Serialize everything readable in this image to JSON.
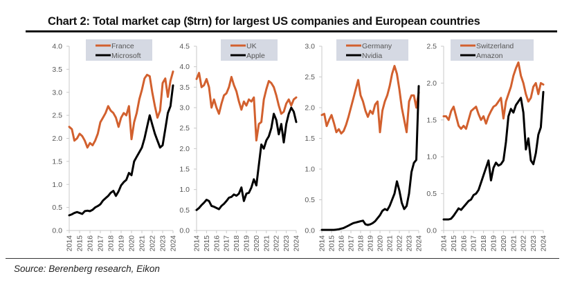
{
  "title": "Chart 2: Total market cap ($trn) for largest US companies and European countries",
  "source": "Source: Berenberg research, Eikon",
  "colors": {
    "country": "#d2602e",
    "company": "#000000",
    "legend_bg": "#d5d9e3",
    "axis": "#c8c8c8",
    "tick_text": "#555555"
  },
  "chart_data": [
    {
      "type": "line",
      "title": "",
      "xlabel": "",
      "ylabel": "$trn",
      "legend_position": "top-center",
      "grid": false,
      "x_ticks": [
        "2014",
        "2015",
        "2016",
        "2017",
        "2018",
        "2019",
        "2020",
        "2021",
        "2022",
        "2023",
        "2024"
      ],
      "xlim": [
        2014,
        2024
      ],
      "ylim": [
        0,
        4.0
      ],
      "y_ticks": [
        "0.0",
        "0.5",
        "1.0",
        "1.5",
        "2.0",
        "2.5",
        "3.0",
        "3.5",
        "4.0"
      ],
      "x": [
        2014.0,
        2014.25,
        2014.5,
        2014.75,
        2015.0,
        2015.25,
        2015.5,
        2015.75,
        2016.0,
        2016.25,
        2016.5,
        2016.75,
        2017.0,
        2017.25,
        2017.5,
        2017.75,
        2018.0,
        2018.25,
        2018.5,
        2018.75,
        2019.0,
        2019.25,
        2019.5,
        2019.75,
        2020.0,
        2020.25,
        2020.5,
        2020.75,
        2021.0,
        2021.25,
        2021.5,
        2021.75,
        2022.0,
        2022.25,
        2022.5,
        2022.75,
        2023.0,
        2023.25,
        2023.5,
        2023.75,
        2024.0
      ],
      "series": [
        {
          "name": "France",
          "role": "country",
          "values": [
            2.25,
            2.2,
            1.95,
            2.0,
            2.1,
            2.05,
            1.95,
            1.8,
            1.9,
            1.85,
            1.95,
            2.1,
            2.35,
            2.45,
            2.55,
            2.7,
            2.6,
            2.55,
            2.45,
            2.25,
            2.45,
            2.55,
            2.5,
            2.7,
            1.98,
            2.35,
            2.55,
            2.85,
            3.05,
            3.3,
            3.38,
            3.35,
            3.0,
            2.7,
            2.45,
            2.6,
            3.2,
            3.3,
            2.9,
            3.25,
            3.45
          ]
        },
        {
          "name": "Microsoft",
          "role": "company",
          "values": [
            0.33,
            0.35,
            0.38,
            0.4,
            0.38,
            0.36,
            0.42,
            0.43,
            0.42,
            0.45,
            0.5,
            0.53,
            0.57,
            0.65,
            0.7,
            0.75,
            0.82,
            0.86,
            0.75,
            0.85,
            0.98,
            1.05,
            1.1,
            1.25,
            1.2,
            1.5,
            1.6,
            1.7,
            1.8,
            2.0,
            2.25,
            2.5,
            2.3,
            2.1,
            1.95,
            1.8,
            1.85,
            2.2,
            2.55,
            2.7,
            3.15
          ]
        }
      ]
    },
    {
      "type": "line",
      "title": "",
      "xlabel": "",
      "ylabel": "$trn",
      "legend_position": "top-center",
      "grid": false,
      "x_ticks": [
        "2014",
        "2015",
        "2016",
        "2017",
        "2018",
        "2019",
        "2020",
        "2021",
        "2022",
        "2023",
        "2024"
      ],
      "xlim": [
        2014,
        2024
      ],
      "ylim": [
        0,
        4.5
      ],
      "y_ticks": [
        "0.0",
        "0.5",
        "1.0",
        "1.5",
        "2.0",
        "2.5",
        "3.0",
        "3.5",
        "4.0",
        "4.5"
      ],
      "x": [
        2014.0,
        2014.25,
        2014.5,
        2014.75,
        2015.0,
        2015.25,
        2015.5,
        2015.75,
        2016.0,
        2016.25,
        2016.5,
        2016.75,
        2017.0,
        2017.25,
        2017.5,
        2017.75,
        2018.0,
        2018.25,
        2018.5,
        2018.75,
        2019.0,
        2019.25,
        2019.5,
        2019.75,
        2020.0,
        2020.25,
        2020.5,
        2020.75,
        2021.0,
        2021.25,
        2021.5,
        2021.75,
        2022.0,
        2022.25,
        2022.5,
        2022.75,
        2023.0,
        2023.25,
        2023.5,
        2023.75,
        2024.0
      ],
      "series": [
        {
          "name": "UK",
          "role": "country",
          "values": [
            3.7,
            3.85,
            3.5,
            3.55,
            3.7,
            3.5,
            3.0,
            3.2,
            3.0,
            2.85,
            3.1,
            3.3,
            3.35,
            3.5,
            3.75,
            3.55,
            3.4,
            3.15,
            2.95,
            3.15,
            3.05,
            3.2,
            3.15,
            3.25,
            2.2,
            2.6,
            2.65,
            3.2,
            3.45,
            3.65,
            3.6,
            3.5,
            3.3,
            3.05,
            2.85,
            2.9,
            3.1,
            3.2,
            3.05,
            3.2,
            3.25
          ]
        },
        {
          "name": "Apple",
          "role": "company",
          "values": [
            0.5,
            0.55,
            0.62,
            0.68,
            0.75,
            0.72,
            0.6,
            0.58,
            0.55,
            0.52,
            0.6,
            0.65,
            0.72,
            0.8,
            0.82,
            0.88,
            0.85,
            0.9,
            1.05,
            0.72,
            0.9,
            0.92,
            1.05,
            1.25,
            1.1,
            1.6,
            2.1,
            2.0,
            2.2,
            2.3,
            2.5,
            2.85,
            2.7,
            2.35,
            2.6,
            2.15,
            2.6,
            2.85,
            3.0,
            2.9,
            2.65
          ]
        }
      ]
    },
    {
      "type": "line",
      "title": "",
      "xlabel": "",
      "ylabel": "$trn",
      "legend_position": "top-center",
      "grid": false,
      "x_ticks": [
        "2014",
        "2015",
        "2016",
        "2017",
        "2018",
        "2019",
        "2020",
        "2021",
        "2022",
        "2023",
        "2024"
      ],
      "xlim": [
        2014,
        2024
      ],
      "ylim": [
        0,
        3.0
      ],
      "y_ticks": [
        "0.0",
        "0.5",
        "1.0",
        "1.5",
        "2.0",
        "2.5",
        "3.0"
      ],
      "x": [
        2014.0,
        2014.25,
        2014.5,
        2014.75,
        2015.0,
        2015.25,
        2015.5,
        2015.75,
        2016.0,
        2016.25,
        2016.5,
        2016.75,
        2017.0,
        2017.25,
        2017.5,
        2017.75,
        2018.0,
        2018.25,
        2018.5,
        2018.75,
        2019.0,
        2019.25,
        2019.5,
        2019.75,
        2020.0,
        2020.25,
        2020.5,
        2020.75,
        2021.0,
        2021.25,
        2021.5,
        2021.75,
        2022.0,
        2022.25,
        2022.5,
        2022.75,
        2023.0,
        2023.25,
        2023.5,
        2023.75,
        2024.0
      ],
      "series": [
        {
          "name": "Germany",
          "role": "country",
          "values": [
            1.88,
            1.9,
            1.7,
            1.8,
            1.88,
            1.75,
            1.6,
            1.65,
            1.58,
            1.62,
            1.72,
            1.85,
            2.0,
            2.15,
            2.3,
            2.45,
            2.2,
            2.1,
            1.95,
            1.85,
            1.95,
            1.9,
            2.05,
            2.1,
            1.6,
            1.95,
            2.1,
            2.2,
            2.35,
            2.55,
            2.68,
            2.55,
            2.3,
            2.0,
            1.8,
            1.6,
            2.1,
            2.2,
            2.2,
            2.0,
            2.25
          ]
        },
        {
          "name": "Nvidia",
          "role": "company",
          "values": [
            0.01,
            0.01,
            0.01,
            0.01,
            0.01,
            0.01,
            0.015,
            0.02,
            0.03,
            0.04,
            0.06,
            0.08,
            0.1,
            0.12,
            0.13,
            0.14,
            0.15,
            0.16,
            0.1,
            0.09,
            0.1,
            0.12,
            0.15,
            0.2,
            0.25,
            0.32,
            0.35,
            0.33,
            0.4,
            0.5,
            0.6,
            0.8,
            0.65,
            0.45,
            0.35,
            0.4,
            0.6,
            0.95,
            1.1,
            1.15,
            2.35
          ]
        }
      ]
    },
    {
      "type": "line",
      "title": "",
      "xlabel": "",
      "ylabel": "$trn",
      "legend_position": "top-center",
      "grid": false,
      "x_ticks": [
        "2014",
        "2015",
        "2016",
        "2017",
        "2018",
        "2019",
        "2020",
        "2021",
        "2022",
        "2023",
        "2024"
      ],
      "xlim": [
        2014,
        2024
      ],
      "ylim": [
        0,
        2.5
      ],
      "y_ticks": [
        "0.0",
        "0.5",
        "1.0",
        "1.5",
        "2.0",
        "2.5"
      ],
      "x": [
        2014.0,
        2014.25,
        2014.5,
        2014.75,
        2015.0,
        2015.25,
        2015.5,
        2015.75,
        2016.0,
        2016.25,
        2016.5,
        2016.75,
        2017.0,
        2017.25,
        2017.5,
        2017.75,
        2018.0,
        2018.25,
        2018.5,
        2018.75,
        2019.0,
        2019.25,
        2019.5,
        2019.75,
        2020.0,
        2020.25,
        2020.5,
        2020.75,
        2021.0,
        2021.25,
        2021.5,
        2021.75,
        2022.0,
        2022.25,
        2022.5,
        2022.75,
        2023.0,
        2023.25,
        2023.5,
        2023.75,
        2024.0
      ],
      "series": [
        {
          "name": "Switzerland",
          "role": "country",
          "values": [
            1.55,
            1.55,
            1.5,
            1.62,
            1.68,
            1.55,
            1.42,
            1.38,
            1.42,
            1.38,
            1.5,
            1.62,
            1.65,
            1.68,
            1.58,
            1.5,
            1.55,
            1.45,
            1.55,
            1.62,
            1.68,
            1.7,
            1.75,
            1.8,
            1.52,
            1.75,
            1.85,
            1.95,
            2.1,
            2.2,
            2.28,
            2.1,
            2.0,
            1.85,
            1.75,
            1.8,
            1.95,
            2.0,
            1.85,
            2.0,
            1.98
          ]
        },
        {
          "name": "Amazon",
          "role": "company",
          "values": [
            0.15,
            0.15,
            0.15,
            0.16,
            0.2,
            0.25,
            0.3,
            0.28,
            0.32,
            0.36,
            0.4,
            0.42,
            0.48,
            0.5,
            0.55,
            0.65,
            0.75,
            0.85,
            0.95,
            0.68,
            0.85,
            0.92,
            0.88,
            0.9,
            0.95,
            1.2,
            1.55,
            1.65,
            1.6,
            1.7,
            1.75,
            1.8,
            1.6,
            1.1,
            1.25,
            0.95,
            0.9,
            1.05,
            1.3,
            1.4,
            1.88
          ]
        }
      ]
    }
  ]
}
